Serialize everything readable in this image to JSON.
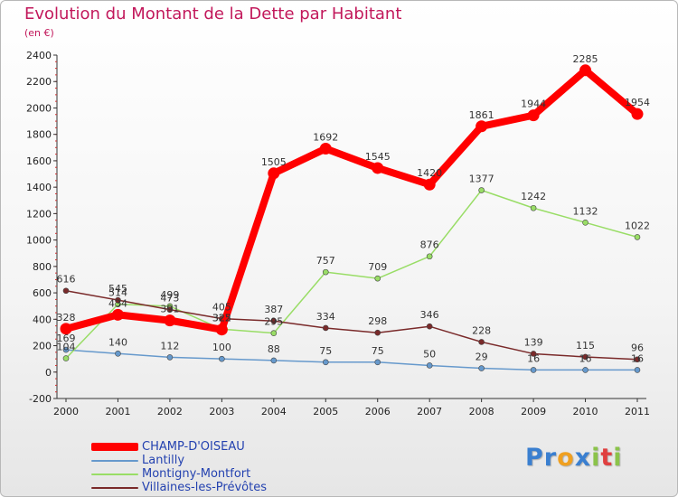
{
  "header": {
    "title": "Evolution du Montant de la Dette par Habitant",
    "unit": "(en €)"
  },
  "chart_data": {
    "type": "line",
    "title": "Evolution du Montant de la Dette par Habitant",
    "subtitle": "(en €)",
    "xlabel": "",
    "ylabel": "",
    "categories": [
      "2000",
      "2001",
      "2002",
      "2003",
      "2004",
      "2005",
      "2006",
      "2007",
      "2008",
      "2009",
      "2010",
      "2011"
    ],
    "ylim": [
      -200,
      2400
    ],
    "yticks": [
      -200,
      0,
      200,
      400,
      600,
      800,
      1000,
      1200,
      1400,
      1600,
      1800,
      2000,
      2200,
      2400
    ],
    "grid": false,
    "legend_position": "bottom-left",
    "series": [
      {
        "name": "CHAMP-D'OISEAU",
        "color": "#ff0000",
        "values": [
          328,
          434,
          391,
          322,
          1505,
          1692,
          1545,
          1420,
          1861,
          1944,
          2285,
          1954
        ],
        "labels": [
          "328",
          "434",
          "391",
          "322",
          "1505",
          "1692",
          "1545",
          "1420",
          "1861",
          "1944",
          "2285",
          "1954"
        ]
      },
      {
        "name": "Lantilly",
        "color": "#6699cc",
        "values": [
          169,
          140,
          112,
          100,
          88,
          75,
          75,
          50,
          29,
          16,
          16,
          16
        ],
        "labels": [
          "169",
          "140",
          "112",
          "100",
          "88",
          "75",
          "75",
          "50",
          "29",
          "16",
          "16",
          "16"
        ]
      },
      {
        "name": "Montigny-Montfort",
        "color": "#99dd66",
        "values": [
          104,
          514,
          499,
          325,
          295,
          757,
          709,
          876,
          1377,
          1242,
          1132,
          1022
        ],
        "labels": [
          "104",
          "514",
          "499",
          "325",
          "295",
          "757",
          "709",
          "876",
          "1377",
          "1242",
          "1132",
          "1022"
        ]
      },
      {
        "name": "Villaines-les-Prévôtes",
        "color": "#7a2a2a",
        "values": [
          616,
          545,
          473,
          405,
          387,
          334,
          298,
          346,
          228,
          139,
          115,
          96
        ],
        "labels": [
          "616",
          "545",
          "473",
          "405",
          "387",
          "334",
          "298",
          "346",
          "228",
          "139",
          "115",
          "96"
        ]
      }
    ]
  },
  "legend": {
    "items": [
      {
        "label": "CHAMP-D'OISEAU",
        "color": "#ff0000"
      },
      {
        "label": "Lantilly",
        "color": "#6699cc"
      },
      {
        "label": "Montigny-Montfort",
        "color": "#99dd66"
      },
      {
        "label": "Villaines-les-Prévôtes",
        "color": "#7a2a2a"
      }
    ]
  },
  "brand": {
    "letters": [
      "P",
      "r",
      "o",
      "x",
      "i",
      "t",
      "i"
    ],
    "colors": [
      "#3a7fd0",
      "#3a7fd0",
      "#f0a020",
      "#3a7fd0",
      "#8bc34a",
      "#e04040",
      "#8bc34a"
    ]
  }
}
